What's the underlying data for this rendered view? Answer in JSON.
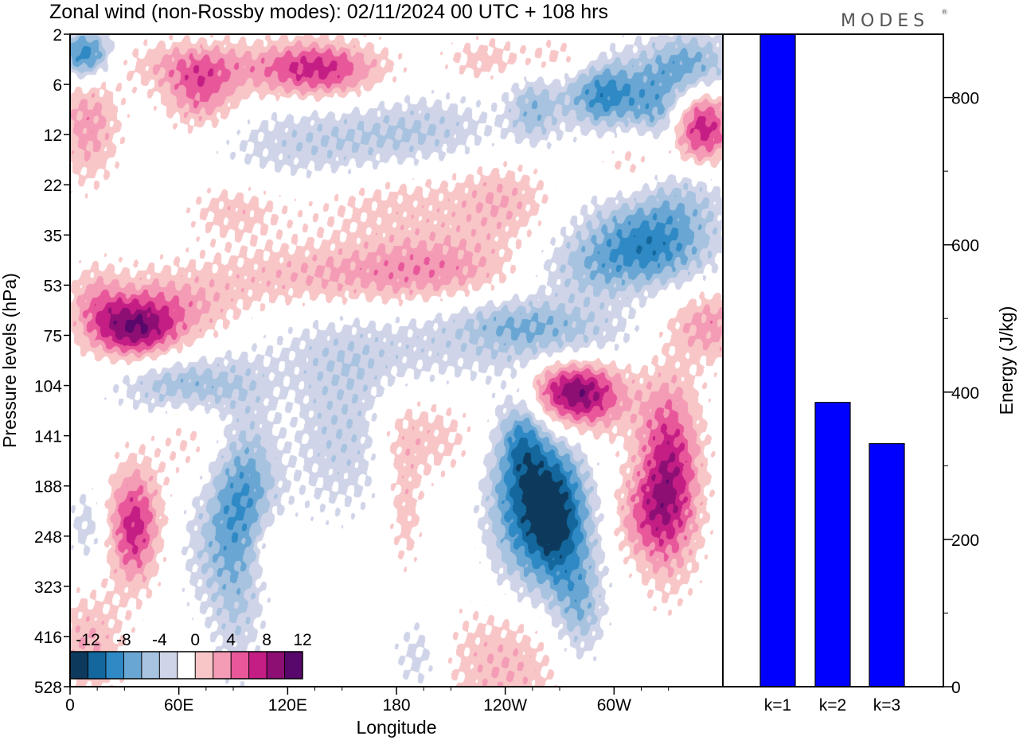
{
  "title": "Zonal wind (non-Rossby modes):  02/11/2024  00 UTC  + 108 hrs",
  "logo_text": "MODES",
  "logo_mark": "®",
  "colors": {
    "neg": [
      "#0d3a5c",
      "#13679c",
      "#2f89c4",
      "#69a6d3",
      "#a8c3e0",
      "#d0d4e8"
    ],
    "pos": [
      "#f8c6c7",
      "#f49bb6",
      "#e8579a",
      "#c41e84",
      "#8e0f74",
      "#57086a"
    ],
    "bar": "#0000ff"
  },
  "chart_data": [
    {
      "type": "heatmap",
      "xlabel": "Longitude",
      "ylabel": "Pressure levels (hPa)",
      "x_ticks": [
        "0",
        "60E",
        "120E",
        "180",
        "120W",
        "60W"
      ],
      "y_ticks": [
        "2",
        "6",
        "12",
        "22",
        "35",
        "53",
        "75",
        "104",
        "141",
        "188",
        "248",
        "323",
        "416",
        "528"
      ],
      "colorbar": {
        "labels": [
          "-12",
          "-8",
          "-4",
          "0",
          "4",
          "8",
          "12"
        ],
        "levels": [
          -14,
          -12,
          -10,
          -8,
          -6,
          -4,
          -2,
          2,
          4,
          6,
          8,
          10,
          12,
          14
        ]
      },
      "features": [
        {
          "lon": 8,
          "lev": 0.4,
          "slon": 10,
          "slev": 0.35,
          "amp": -10
        },
        {
          "lon": 340,
          "lev": 0.7,
          "slon": 18,
          "slev": 0.5,
          "amp": -8
        },
        {
          "lon": 295,
          "lev": 1.2,
          "slon": 16,
          "slev": 0.5,
          "amp": -9
        },
        {
          "lon": 325,
          "lev": 1.6,
          "slon": 10,
          "slev": 0.4,
          "amp": -5
        },
        {
          "lon": 65,
          "lev": 0.6,
          "slon": 25,
          "slev": 0.35,
          "amp": 4
        },
        {
          "lon": 135,
          "lev": 0.7,
          "slon": 25,
          "slev": 0.4,
          "amp": 9
        },
        {
          "lon": 72,
          "lev": 1.2,
          "slon": 14,
          "slev": 0.5,
          "amp": 6
        },
        {
          "lon": 10,
          "lev": 1.8,
          "slon": 12,
          "slev": 0.8,
          "amp": 5
        },
        {
          "lon": 348,
          "lev": 1.8,
          "slon": 12,
          "slev": 0.6,
          "amp": 10
        },
        {
          "lon": 228,
          "lev": 0.5,
          "slon": 15,
          "slev": 0.3,
          "amp": 3
        },
        {
          "lon": 270,
          "lev": 0.5,
          "slon": 15,
          "slev": 0.3,
          "amp": 3
        },
        {
          "lon": 140,
          "lev": 2.2,
          "slon": 40,
          "slev": 0.6,
          "amp": -4
        },
        {
          "lon": 200,
          "lev": 1.9,
          "slon": 28,
          "slev": 0.5,
          "amp": -3
        },
        {
          "lon": 255,
          "lev": 1.5,
          "slon": 10,
          "slev": 0.5,
          "amp": -5
        },
        {
          "lon": 310,
          "lev": 2.7,
          "slon": 14,
          "slev": 0.6,
          "amp": 3
        },
        {
          "lon": 180,
          "lev": 3.3,
          "slon": 40,
          "slev": 0.6,
          "amp": 3
        },
        {
          "lon": 90,
          "lev": 3.5,
          "slon": 18,
          "slev": 0.4,
          "amp": 3
        },
        {
          "lon": 240,
          "lev": 3.3,
          "slon": 18,
          "slev": 0.6,
          "amp": 3
        },
        {
          "lon": 340,
          "lev": 3.2,
          "slon": 18,
          "slev": 0.6,
          "amp": -4
        },
        {
          "lon": 310,
          "lev": 3.6,
          "slon": 20,
          "slev": 0.5,
          "amp": -4
        },
        {
          "lon": 290,
          "lev": 4.6,
          "slon": 24,
          "slev": 0.5,
          "amp": -5
        },
        {
          "lon": 325,
          "lev": 4.3,
          "slon": 22,
          "slev": 0.5,
          "amp": -6
        },
        {
          "lon": 150,
          "lev": 4.8,
          "slon": 55,
          "slev": 0.45,
          "amp": 4
        },
        {
          "lon": 205,
          "lev": 4.6,
          "slon": 30,
          "slev": 0.5,
          "amp": 3
        },
        {
          "lon": 50,
          "lev": 5.5,
          "slon": 30,
          "slev": 0.5,
          "amp": 5
        },
        {
          "lon": 35,
          "lev": 5.9,
          "slon": 16,
          "slev": 0.4,
          "amp": 9
        },
        {
          "lon": 15,
          "lev": 5.3,
          "slon": 10,
          "slev": 0.5,
          "amp": 3
        },
        {
          "lon": 173,
          "lev": 6.3,
          "slon": 55,
          "slev": 0.6,
          "amp": -3
        },
        {
          "lon": 270,
          "lev": 6.0,
          "slon": 30,
          "slev": 0.5,
          "amp": -4
        },
        {
          "lon": 240,
          "lev": 5.7,
          "slon": 25,
          "slev": 0.35,
          "amp": -3
        },
        {
          "lon": 353,
          "lev": 5.8,
          "slon": 16,
          "slev": 0.5,
          "amp": 5
        },
        {
          "lon": 65,
          "lev": 7.0,
          "slon": 25,
          "slev": 0.4,
          "amp": -6
        },
        {
          "lon": 75,
          "lev": 8.0,
          "slon": 18,
          "slev": 0.8,
          "amp": 3
        },
        {
          "lon": 278,
          "lev": 7.1,
          "slon": 18,
          "slev": 0.45,
          "amp": 10
        },
        {
          "lon": 280,
          "lev": 7.4,
          "slon": 20,
          "slev": 0.6,
          "amp": 3
        },
        {
          "lon": 330,
          "lev": 8.8,
          "slon": 12,
          "slev": 1.3,
          "amp": 10
        },
        {
          "lon": 315,
          "lev": 9.6,
          "slon": 12,
          "slev": 0.6,
          "amp": 4
        },
        {
          "lon": 95,
          "lev": 9.0,
          "slon": 14,
          "slev": 1.1,
          "amp": -8
        },
        {
          "lon": 80,
          "lev": 10.3,
          "slon": 14,
          "slev": 0.9,
          "amp": -3
        },
        {
          "lon": 92,
          "lev": 11.6,
          "slon": 10,
          "slev": 1.0,
          "amp": -3
        },
        {
          "lon": 265,
          "lev": 9.5,
          "slon": 12,
          "slev": 1.0,
          "amp": -12
        },
        {
          "lon": 245,
          "lev": 9.2,
          "slon": 12,
          "slev": 1.2,
          "amp": -7
        },
        {
          "lon": 278,
          "lev": 10.5,
          "slon": 12,
          "slev": 1.4,
          "amp": -4
        },
        {
          "lon": 250,
          "lev": 8.0,
          "slon": 8,
          "slev": 0.6,
          "amp": -5
        },
        {
          "lon": 35,
          "lev": 9.8,
          "slon": 10,
          "slev": 0.8,
          "amp": 9
        },
        {
          "lon": 10,
          "lev": 9.8,
          "slon": 8,
          "slev": 0.6,
          "amp": -3
        },
        {
          "lon": 110,
          "lev": 10.2,
          "slon": 8,
          "slev": 0.5,
          "amp": 3
        },
        {
          "lon": 140,
          "lev": 8.0,
          "slon": 12,
          "slev": 1.1,
          "amp": -3
        },
        {
          "lon": 195,
          "lev": 8.0,
          "slon": 22,
          "slev": 0.6,
          "amp": 3
        },
        {
          "lon": 160,
          "lev": 8.0,
          "slon": 10,
          "slev": 1.0,
          "amp": -3
        },
        {
          "lon": 10,
          "lev": 12.2,
          "slon": 14,
          "slev": 0.8,
          "amp": 4
        },
        {
          "lon": 240,
          "lev": 12.6,
          "slon": 25,
          "slev": 0.9,
          "amp": 4
        },
        {
          "lon": 192,
          "lev": 12.4,
          "slon": 10,
          "slev": 0.6,
          "amp": -3
        },
        {
          "lon": 282,
          "lev": 11.5,
          "slon": 8,
          "slev": 0.6,
          "amp": -3
        },
        {
          "lon": 185,
          "lev": 9.5,
          "slon": 6,
          "slev": 0.8,
          "amp": 3
        }
      ]
    },
    {
      "type": "bar",
      "categories": [
        "k=1",
        "k=2",
        "k=3"
      ],
      "values": [
        886,
        386,
        330
      ],
      "ylabel": "Energy (J/kg)",
      "ylim": [
        0,
        886
      ],
      "y_ticks": [
        0,
        200,
        400,
        600,
        800
      ]
    }
  ]
}
